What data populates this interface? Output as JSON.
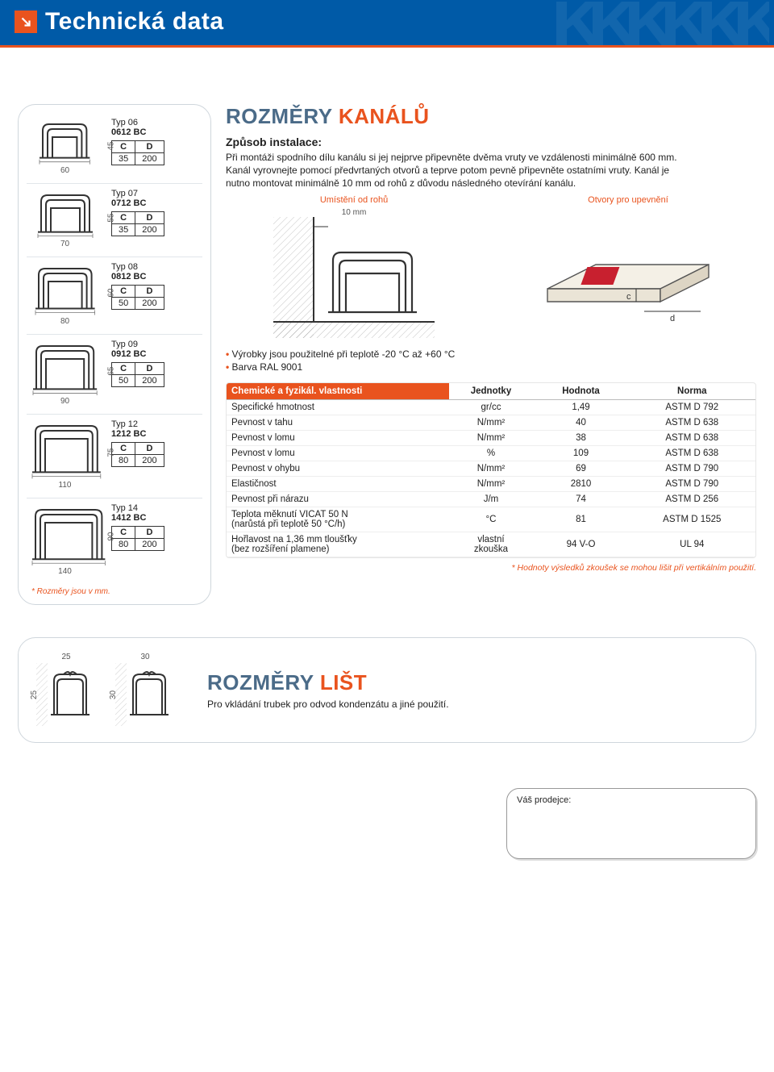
{
  "colors": {
    "blue": "#005aa7",
    "orange": "#e9531e",
    "grey_blue": "#4b6b88",
    "rule": "#cfd6dc",
    "text": "#222"
  },
  "header": {
    "title": "Technická data"
  },
  "left": {
    "types": [
      {
        "typ": "Typ 06",
        "code": "0612 BC",
        "C": "35",
        "D": "200",
        "w": "60",
        "h": "45"
      },
      {
        "typ": "Typ 07",
        "code": "0712 BC",
        "C": "35",
        "D": "200",
        "w": "70",
        "h": "55"
      },
      {
        "typ": "Typ 08",
        "code": "0812 BC",
        "C": "50",
        "D": "200",
        "w": "80",
        "h": "60"
      },
      {
        "typ": "Typ 09",
        "code": "0912 BC",
        "C": "50",
        "D": "200",
        "w": "90",
        "h": "65"
      },
      {
        "typ": "Typ 12",
        "code": "1212 BC",
        "C": "80",
        "D": "200",
        "w": "110",
        "h": "75"
      },
      {
        "typ": "Typ 14",
        "code": "1412 BC",
        "C": "80",
        "D": "200",
        "w": "140",
        "h": "90"
      }
    ],
    "cd_headers": {
      "C": "C",
      "D": "D"
    },
    "footnote": "Rozměry jsou v mm."
  },
  "right": {
    "title_a": "ROZMĚRY",
    "title_b": "KANÁLŮ",
    "install_heading": "Způsob instalace:",
    "install_body": "Při montáži spodního dílu kanálu si jej nejprve připevněte dvěma vruty ve vzdálenosti minimálně 600 mm. Kanál vyrovnejte pomocí předvrtaných otvorů a teprve potom pevně připevněte ostatními vruty. Kanál je nutno montovat minimálně 10 mm od rohů z důvodu následného otevírání kanálu.",
    "diag_left_cap": "Umístění od rohů",
    "diag_left_dim": "10 mm",
    "diag_right_cap": "Otvory pro upevnění",
    "diag_right_c": "c",
    "diag_right_d": "d",
    "bullets": [
      "Výrobky jsou použitelné při teplotě -20 °C až +60 °C",
      "Barva RAL 9001"
    ],
    "props": {
      "headers": {
        "property": "Chemické a fyzikál. vlastnosti",
        "unit": "Jednotky",
        "value": "Hodnota",
        "norm": "Norma"
      },
      "rows": [
        {
          "p": "Specifické hmotnost",
          "u": "gr/cc",
          "v": "1,49",
          "n": "ASTM D 792"
        },
        {
          "p": "Pevnost v tahu",
          "u": "N/mm²",
          "v": "40",
          "n": "ASTM D 638"
        },
        {
          "p": "Pevnost v lomu",
          "u": "N/mm²",
          "v": "38",
          "n": "ASTM D 638"
        },
        {
          "p": "Pevnost v lomu",
          "u": "%",
          "v": "109",
          "n": "ASTM D 638"
        },
        {
          "p": "Pevnost v ohybu",
          "u": "N/mm²",
          "v": "69",
          "n": "ASTM D 790"
        },
        {
          "p": "Elastičnost",
          "u": "N/mm²",
          "v": "2810",
          "n": "ASTM D 790"
        },
        {
          "p": "Pevnost při nárazu",
          "u": "J/m",
          "v": "74",
          "n": "ASTM D 256"
        },
        {
          "p": "Teplota měknutí VICAT 50 N\n(narůstá při teplotě 50 °C/h)",
          "u": "°C",
          "v": "81",
          "n": "ASTM D 1525"
        },
        {
          "p": "Hořlavost na 1,36 mm tloušťky\n(bez rozšíření plamene)",
          "u": "vlastní\nzkouška",
          "v": "94 V-O",
          "n": "UL 94"
        }
      ],
      "footnote": "Hodnoty výsledků zkoušek se mohou lišit při vertikálním použití."
    }
  },
  "bottom": {
    "title_a": "ROZMĚRY",
    "title_b": "LIŠT",
    "body": "Pro vkládání trubek pro odvod kondenzátu a jiné použití.",
    "figs": [
      {
        "w": "25",
        "h": "25"
      },
      {
        "w": "30",
        "h": "30"
      }
    ]
  },
  "dealer": {
    "label": "Váš prodejce:"
  }
}
